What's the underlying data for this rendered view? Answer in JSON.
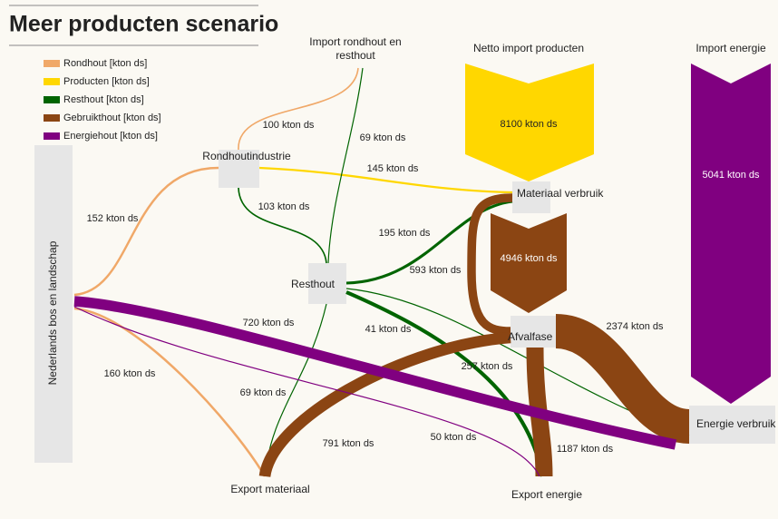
{
  "title": "Meer producten scenario",
  "legend": [
    "Rondhout [kton ds]",
    "Producten [kton ds]",
    "Resthout [kton ds]",
    "Gebruikthout [kton ds]",
    "Energiehout [kton ds]"
  ],
  "nodes": {
    "bos": "Nederlands bos en landschap",
    "import_rondhout": [
      "Import rondhout en",
      "resthout"
    ],
    "rondhoutindustrie": "Rondhoutindustrie",
    "resthout": "Resthout",
    "netto_import": "Netto import producten",
    "import_energie": "Import energie",
    "materiaal_verbruik": "Materiaal verbruik",
    "afvalfase": "Afvalfase",
    "energie_verbruik": "Energie verbruik",
    "export_materiaal": "Export materiaal",
    "export_energie": "Export energie"
  },
  "flows": [
    {
      "value": 152,
      "label": "152 kton ds"
    },
    {
      "value": 160,
      "label": "160 kton ds"
    },
    {
      "value": 100,
      "label": "100 kton ds"
    },
    {
      "value": 145,
      "label": "145 kton ds"
    },
    {
      "value": 103,
      "label": "103 kton ds"
    },
    {
      "value": 69,
      "label": "69 kton ds"
    },
    {
      "value": 69,
      "label": "69 kton ds"
    },
    {
      "value": 195,
      "label": "195 kton ds"
    },
    {
      "value": 593,
      "label": "593 kton ds"
    },
    {
      "value": 41,
      "label": "41 kton ds"
    },
    {
      "value": 257,
      "label": "257 kton ds"
    },
    {
      "value": 1187,
      "label": "1187 kton ds"
    },
    {
      "value": 2374,
      "label": "2374 kton ds"
    },
    {
      "value": 791,
      "label": "791 kton ds"
    },
    {
      "value": 720,
      "label": "720 kton ds"
    },
    {
      "value": 50,
      "label": "50 kton ds"
    }
  ],
  "imports": [
    {
      "value": 8100,
      "label": "8100 kton ds"
    },
    {
      "value": 5041,
      "label": "5041 kton ds"
    },
    {
      "value": 4946,
      "label": "4946 kton ds"
    }
  ]
}
